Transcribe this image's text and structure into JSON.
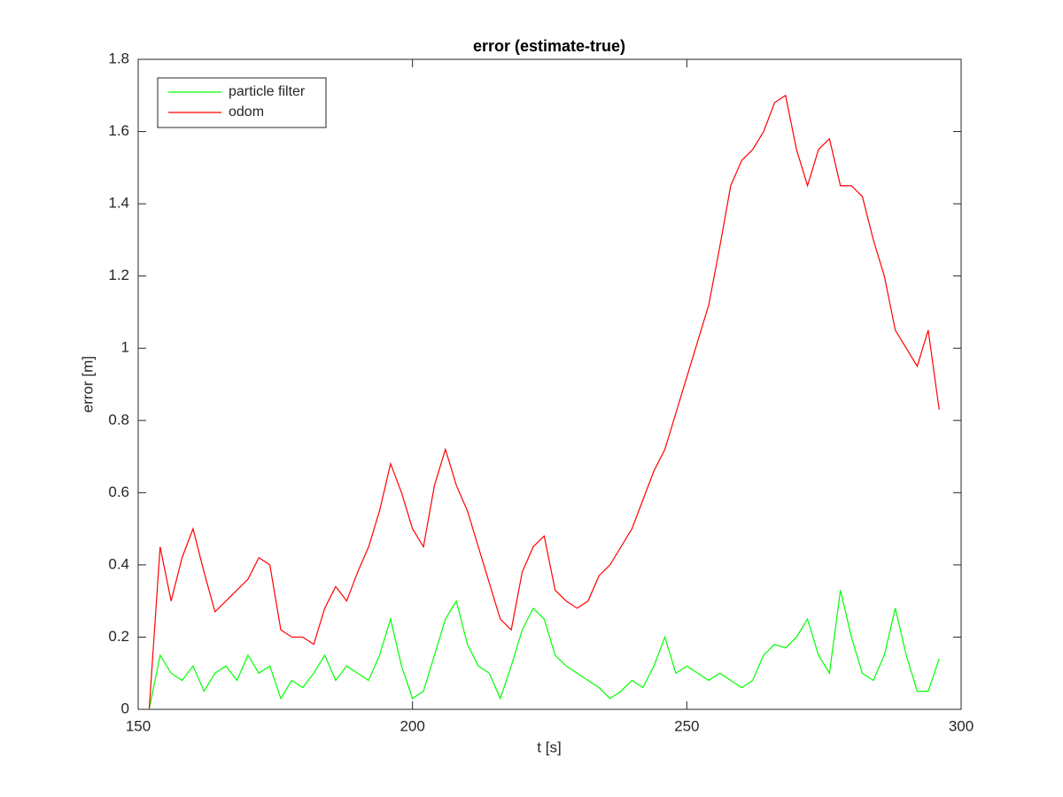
{
  "chart_data": {
    "type": "line",
    "title": "error (estimate-true)",
    "xlabel": "t [s]",
    "ylabel": "error [m]",
    "x": [
      152,
      154,
      156,
      158,
      160,
      162,
      164,
      166,
      168,
      170,
      172,
      174,
      176,
      178,
      180,
      182,
      184,
      186,
      188,
      190,
      192,
      194,
      196,
      198,
      200,
      202,
      204,
      206,
      208,
      210,
      212,
      214,
      216,
      218,
      220,
      222,
      224,
      226,
      228,
      230,
      232,
      234,
      236,
      238,
      240,
      242,
      244,
      246,
      248,
      250,
      252,
      254,
      256,
      258,
      260,
      262,
      264,
      266,
      268,
      270,
      272,
      274,
      276,
      278,
      280,
      282,
      284,
      286,
      288,
      290,
      292,
      294,
      296
    ],
    "series": [
      {
        "name": "particle filter",
        "color": "#00ff00",
        "values": [
          0,
          0.15,
          0.1,
          0.08,
          0.12,
          0.05,
          0.1,
          0.12,
          0.08,
          0.15,
          0.1,
          0.12,
          0.03,
          0.08,
          0.06,
          0.1,
          0.15,
          0.08,
          0.12,
          0.1,
          0.08,
          0.15,
          0.25,
          0.12,
          0.03,
          0.05,
          0.15,
          0.25,
          0.3,
          0.18,
          0.12,
          0.1,
          0.03,
          0.12,
          0.22,
          0.28,
          0.25,
          0.15,
          0.12,
          0.1,
          0.08,
          0.06,
          0.03,
          0.05,
          0.08,
          0.06,
          0.12,
          0.2,
          0.1,
          0.12,
          0.1,
          0.08,
          0.1,
          0.08,
          0.06,
          0.08,
          0.15,
          0.18,
          0.17,
          0.2,
          0.25,
          0.15,
          0.1,
          0.33,
          0.2,
          0.1,
          0.08,
          0.15,
          0.28,
          0.15,
          0.05,
          0.05,
          0.14
        ]
      },
      {
        "name": "odom",
        "color": "#ff0000",
        "values": [
          0,
          0.45,
          0.3,
          0.42,
          0.5,
          0.38,
          0.27,
          0.3,
          0.33,
          0.36,
          0.42,
          0.4,
          0.22,
          0.2,
          0.2,
          0.18,
          0.28,
          0.34,
          0.3,
          0.38,
          0.45,
          0.55,
          0.68,
          0.6,
          0.5,
          0.45,
          0.62,
          0.72,
          0.62,
          0.55,
          0.45,
          0.35,
          0.25,
          0.22,
          0.38,
          0.45,
          0.48,
          0.33,
          0.3,
          0.28,
          0.3,
          0.37,
          0.4,
          0.45,
          0.5,
          0.58,
          0.66,
          0.72,
          0.82,
          0.92,
          1.02,
          1.12,
          1.28,
          1.45,
          1.52,
          1.55,
          1.6,
          1.68,
          1.7,
          1.55,
          1.45,
          1.55,
          1.58,
          1.45,
          1.45,
          1.42,
          1.3,
          1.2,
          1.05,
          1.0,
          0.95,
          1.05,
          0.83
        ]
      }
    ],
    "xlim": [
      150,
      300
    ],
    "xticks": [
      150,
      200,
      250,
      300
    ],
    "ylim": [
      0,
      1.8
    ],
    "yticks": [
      0,
      0.2,
      0.4,
      0.6,
      0.8,
      1,
      1.2,
      1.4,
      1.6,
      1.8
    ],
    "grid": false,
    "legend": "upper-left"
  }
}
